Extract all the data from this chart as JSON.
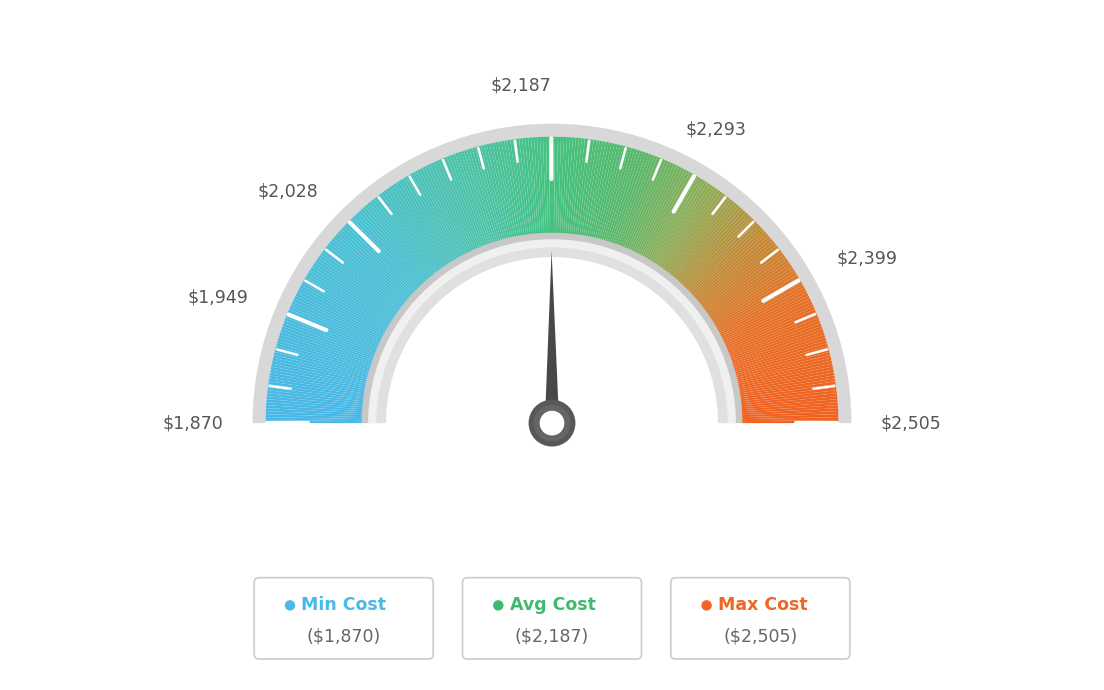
{
  "min_val": 1870,
  "max_val": 2505,
  "avg_val": 2187,
  "tick_labels": [
    "$1,870",
    "$1,949",
    "$2,028",
    "$2,187",
    "$2,293",
    "$2,399",
    "$2,505"
  ],
  "tick_values": [
    1870,
    1949,
    2028,
    2187,
    2293,
    2399,
    2505
  ],
  "legend_labels": [
    "Min Cost",
    "Avg Cost",
    "Max Cost"
  ],
  "legend_values": [
    "($1,870)",
    "($2,187)",
    "($2,505)"
  ],
  "legend_colors": [
    "#4ab8e8",
    "#3dbb6e",
    "#f26522"
  ],
  "background_color": "#ffffff",
  "color_stops": [
    [
      0.0,
      [
        0.29,
        0.72,
        0.91
      ]
    ],
    [
      0.25,
      [
        0.29,
        0.75,
        0.82
      ]
    ],
    [
      0.4,
      [
        0.3,
        0.76,
        0.65
      ]
    ],
    [
      0.5,
      [
        0.27,
        0.76,
        0.5
      ]
    ],
    [
      0.6,
      [
        0.35,
        0.72,
        0.42
      ]
    ],
    [
      0.68,
      [
        0.55,
        0.68,
        0.35
      ]
    ],
    [
      0.76,
      [
        0.75,
        0.55,
        0.22
      ]
    ],
    [
      0.85,
      [
        0.9,
        0.44,
        0.15
      ]
    ],
    [
      1.0,
      [
        0.95,
        0.38,
        0.13
      ]
    ]
  ],
  "outer_ring_color": "#d8d8d8",
  "inner_ring_color_outer": "#d0d0d0",
  "inner_ring_color_inner": "#e8e8e8",
  "hub_outer_color": "#555555",
  "hub_inner_color": "#ffffff",
  "needle_color": "#444444"
}
